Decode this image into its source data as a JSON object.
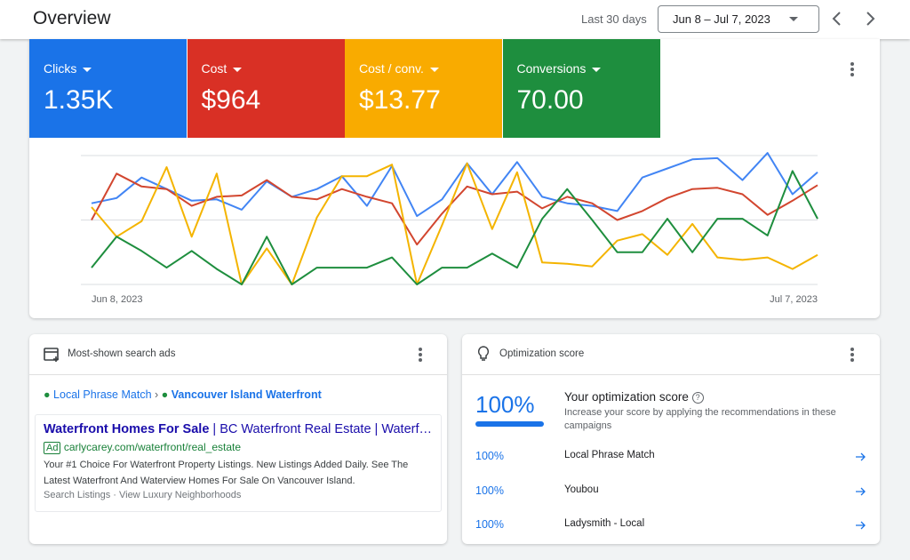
{
  "header": {
    "title": "Overview",
    "range_label": "Last 30 days",
    "date_range": "Jun 8 – Jul 7, 2023"
  },
  "chart_data": {
    "type": "line",
    "categories": [
      "Jun 8, 2023",
      null,
      null,
      null,
      null,
      null,
      null,
      null,
      null,
      null,
      null,
      null,
      null,
      null,
      null,
      null,
      null,
      null,
      null,
      null,
      null,
      null,
      null,
      null,
      null,
      null,
      null,
      null,
      null,
      "Jul 7, 2023"
    ],
    "ylim": [
      0,
      100
    ],
    "gridlines": [
      0,
      50,
      100
    ],
    "series": [
      {
        "name": "Clicks",
        "total": "1.35K",
        "color": "#1a73e8",
        "line_color": "#4285f4",
        "values": [
          63,
          67,
          83,
          74,
          65,
          66,
          58,
          80,
          68,
          74,
          84,
          61,
          92,
          53,
          66,
          94,
          70,
          95,
          68,
          63,
          61,
          57,
          83,
          90,
          97,
          98,
          81,
          102,
          70,
          87
        ]
      },
      {
        "name": "Cost",
        "total": "$964",
        "color": "#d93025",
        "line_color": "#d2462f",
        "values": [
          50,
          86,
          76,
          74,
          61,
          68,
          69,
          81,
          68,
          66,
          74,
          68,
          63,
          31,
          55,
          76,
          70,
          72,
          59,
          68,
          63,
          50,
          57,
          67,
          74,
          75,
          70,
          54,
          65,
          77
        ]
      },
      {
        "name": "Cost / conv.",
        "total": "$13.77",
        "color": "#f9ab00",
        "line_color": "#f4b400",
        "values": [
          60,
          37,
          49,
          91,
          37,
          86,
          0,
          28,
          0,
          52,
          84,
          84,
          93,
          0,
          46,
          94,
          43,
          87,
          17,
          16,
          14,
          34,
          39,
          23,
          47,
          21,
          19,
          21,
          12,
          23
        ]
      },
      {
        "name": "Conversions",
        "total": "70.00",
        "color": "#1e8e3e",
        "line_color": "#1e8e3e",
        "values": [
          13,
          37,
          26,
          13,
          26,
          12,
          0,
          37,
          0,
          13,
          13,
          13,
          21,
          0,
          13,
          13,
          24,
          13,
          51,
          74,
          50,
          25,
          25,
          51,
          25,
          51,
          51,
          38,
          88,
          51
        ]
      }
    ]
  },
  "ads_card": {
    "title": "Most-shown search ads",
    "campaign": "Local Phrase Match",
    "ad_group": "Vancouver Island Waterfront",
    "headline_main": "Waterfront Homes For Sale",
    "headline_rest": "| BC Waterfront Real Estate | Waterf…",
    "ad_badge": "Ad",
    "url": "carlycarey.com/waterfront/real_estate",
    "description": "Your #1 Choice For Waterfront Property Listings. New Listings Added Daily. See The Latest Waterfront And Waterview Homes For Sale On Vancouver Island.",
    "extensions": "Search Listings · View Luxury Neighborhoods"
  },
  "optimization_card": {
    "title": "Optimization score",
    "score": "100%",
    "heading": "Your optimization score",
    "description": "Increase your score by applying the recommendations in these campaigns",
    "rows": [
      {
        "score": "100%",
        "name": "Local Phrase Match"
      },
      {
        "score": "100%",
        "name": "Youbou"
      },
      {
        "score": "100%",
        "name": "Ladysmith - Local"
      }
    ]
  }
}
